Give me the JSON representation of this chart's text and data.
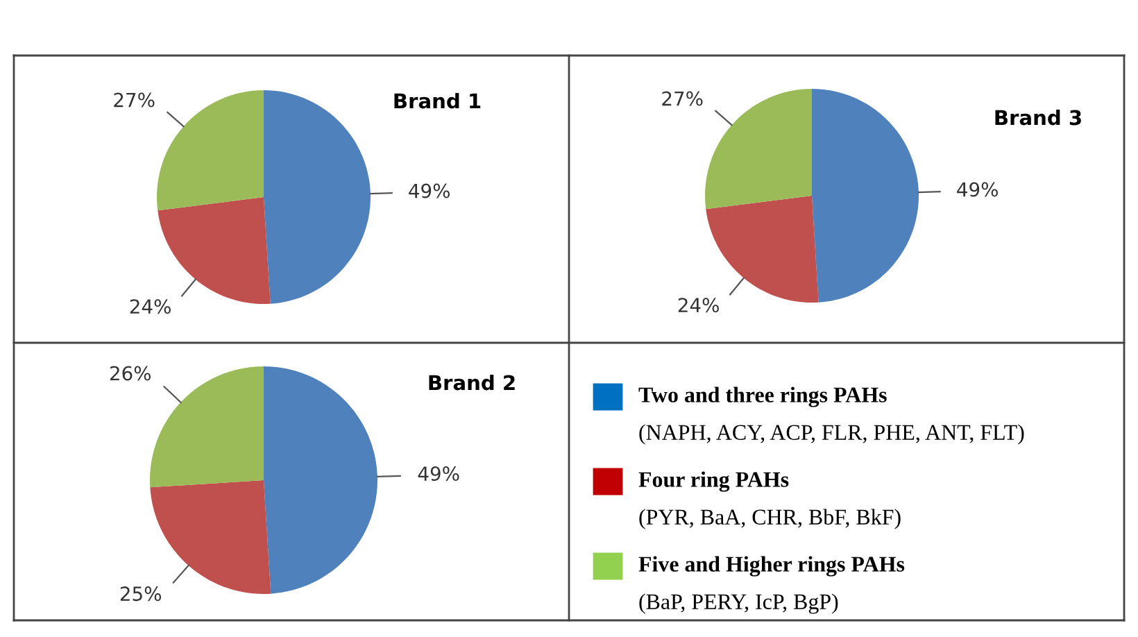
{
  "chart_data": [
    {
      "type": "pie",
      "title": "Brand 1",
      "categories": [
        null,
        null,
        null
      ],
      "values": [
        49,
        24,
        27
      ],
      "value_labels": [
        "49%",
        "24%",
        "27%"
      ],
      "colors": [
        "#4f81bd",
        "#c0504d",
        "#9bbb59"
      ]
    },
    {
      "type": "pie",
      "title": "Brand 3",
      "categories": [
        null,
        null,
        null
      ],
      "values": [
        49,
        24,
        27
      ],
      "value_labels": [
        "49%",
        "24%",
        "27%"
      ],
      "colors": [
        "#4f81bd",
        "#c0504d",
        "#9bbb59"
      ]
    },
    {
      "type": "pie",
      "title": "Brand 2",
      "categories": [
        null,
        null,
        null
      ],
      "values": [
        49,
        25,
        26
      ],
      "value_labels": [
        "49%",
        "25%",
        "26%"
      ],
      "colors": [
        "#4f81bd",
        "#c0504d",
        "#9bbb59"
      ]
    },
    {
      "type": "other",
      "categories": [
        "Two and three rings PAHs",
        "Four ring PAHs",
        "Five and Higher rings PAHs"
      ],
      "colors": [
        "#0070c0",
        "#c00000",
        "#92d050"
      ],
      "annotations": [
        "(NAPH, ACY, ACP, FLR, PHE, ANT, FLT)",
        "(PYR, BaA, CHR, BbF, BkF)",
        "(BaP, PERY, IcP, BgP)"
      ]
    }
  ]
}
